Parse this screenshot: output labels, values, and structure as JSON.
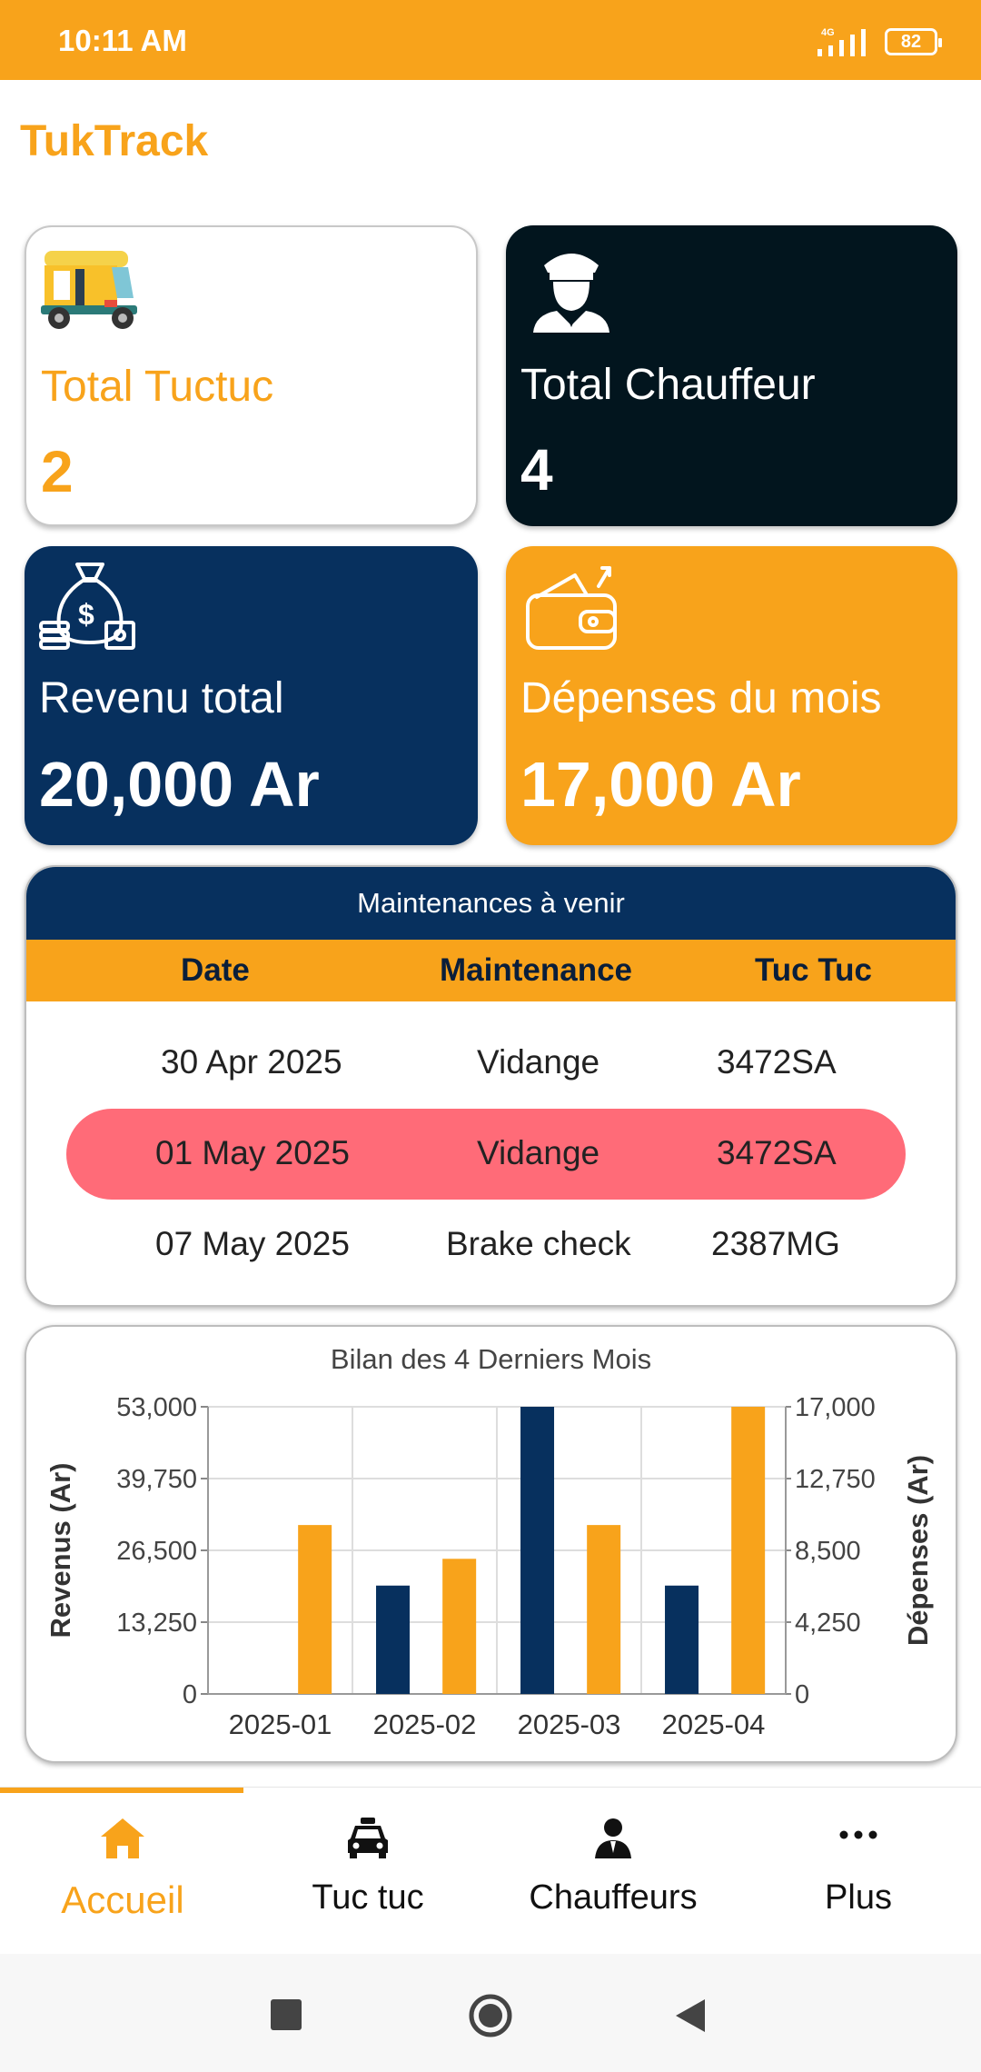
{
  "status_bar": {
    "time": "10:11 AM",
    "network": "4G",
    "battery": "82"
  },
  "app": {
    "title": "TukTrack"
  },
  "stats": {
    "tuctuc": {
      "label": "Total Tuctuc",
      "value": "2"
    },
    "chauffeur": {
      "label": "Total Chauffeur",
      "value": "4"
    },
    "revenu": {
      "label": "Revenu total",
      "value": "20,000 Ar"
    },
    "depenses": {
      "label": "Dépenses du mois",
      "value": "17,000 Ar"
    }
  },
  "maintenance": {
    "title": "Maintenances à venir",
    "columns": [
      "Date",
      "Maintenance",
      "Tuc Tuc"
    ],
    "rows": [
      {
        "date": "30 Apr 2025",
        "type": "Vidange",
        "tuctuc": "3472SA",
        "highlight": false
      },
      {
        "date": "01 May 2025",
        "type": "Vidange",
        "tuctuc": "3472SA",
        "highlight": true
      },
      {
        "date": "07 May 2025",
        "type": "Brake check",
        "tuctuc": "2387MG",
        "highlight": false
      }
    ]
  },
  "chart_data": {
    "type": "bar",
    "title": "Bilan des 4 Derniers Mois",
    "categories": [
      "2025-01",
      "2025-02",
      "2025-03",
      "2025-04"
    ],
    "series": [
      {
        "name": "Revenus",
        "axis": "left",
        "color": "#07305E",
        "values": [
          0,
          20000,
          53000,
          20000
        ]
      },
      {
        "name": "Dépenses",
        "axis": "right",
        "color": "#F8A31B",
        "values": [
          10000,
          8000,
          10000,
          17000
        ]
      }
    ],
    "ylabel_left": "Revenus (Ar)",
    "ylabel_right": "Dépenses (Ar)",
    "ylim_left": [
      0,
      53000
    ],
    "ylim_right": [
      0,
      17000
    ],
    "yticks_left": [
      "0",
      "13,250",
      "26,500",
      "39,750",
      "53,000"
    ],
    "yticks_right": [
      "0",
      "4,250",
      "8,500",
      "12,750",
      "17,000"
    ]
  },
  "bottom_nav": {
    "items": [
      {
        "label": "Accueil",
        "icon": "home-icon",
        "active": true
      },
      {
        "label": "Tuc tuc",
        "icon": "car-icon",
        "active": false
      },
      {
        "label": "Chauffeurs",
        "icon": "person-icon",
        "active": false
      },
      {
        "label": "Plus",
        "icon": "more-icon",
        "active": false
      }
    ]
  },
  "colors": {
    "accent": "#F8A31B",
    "navy": "#07305E",
    "black": "#02151E",
    "highlight": "#FF6B78"
  }
}
